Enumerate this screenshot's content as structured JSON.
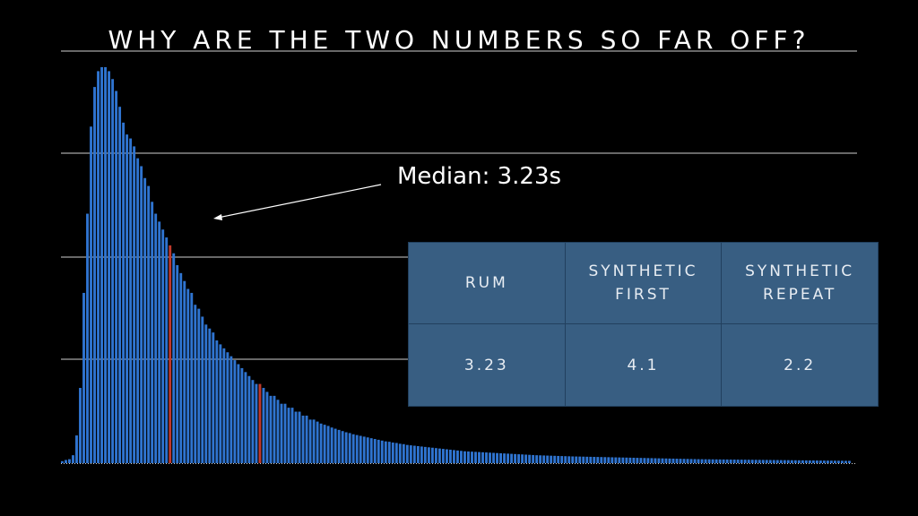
{
  "slide": {
    "title": "WHY ARE THE TWO NUMBERS SO FAR OFF?",
    "annotation": "Median: 3.23s"
  },
  "table": {
    "headers": [
      "RUM",
      "SYNTHETIC\nFIRST",
      "SYNTHETIC\nREPEAT"
    ],
    "values": [
      "3.23",
      "4.1",
      "2.2"
    ]
  },
  "chart_data": {
    "type": "bar",
    "title": "WHY ARE THE TWO NUMBERS SO FAR OFF?",
    "xlabel": "",
    "ylabel": "",
    "grid": true,
    "ylim": [
      0,
      100
    ],
    "bar_color": "#2f74d0",
    "highlight_color": "#c0392b",
    "highlighted_bars": [
      30,
      55
    ],
    "values": [
      0.5,
      0.8,
      1,
      2,
      7,
      19,
      43,
      63,
      85,
      95,
      99,
      100,
      100,
      99,
      97,
      94,
      90,
      86,
      83,
      82,
      80,
      77,
      75,
      72,
      70,
      66,
      63,
      61,
      59,
      57,
      55,
      53,
      50,
      48,
      46,
      44,
      43,
      40,
      39,
      37,
      35,
      34,
      33,
      31,
      30,
      29,
      28,
      27,
      26,
      25,
      24,
      23,
      22,
      21,
      20,
      20,
      19,
      18,
      17,
      17,
      16,
      15,
      15,
      14,
      14,
      13,
      13,
      12,
      12,
      11,
      11,
      10.5,
      10,
      9.7,
      9.4,
      9,
      8.7,
      8.4,
      8.1,
      7.8,
      7.6,
      7.3,
      7.1,
      6.9,
      6.7,
      6.5,
      6.3,
      6.1,
      5.9,
      5.7,
      5.5,
      5.4,
      5.2,
      5.1,
      4.9,
      4.8,
      4.6,
      4.5,
      4.4,
      4.3,
      4.2,
      4.1,
      4,
      3.9,
      3.8,
      3.7,
      3.6,
      3.5,
      3.4,
      3.3,
      3.2,
      3.1,
      3,
      2.95,
      2.9,
      2.85,
      2.8,
      2.75,
      2.7,
      2.65,
      2.6,
      2.55,
      2.5,
      2.45,
      2.4,
      2.35,
      2.3,
      2.25,
      2.2,
      2.15,
      2.1,
      2.05,
      2,
      1.97,
      1.94,
      1.91,
      1.88,
      1.85,
      1.82,
      1.79,
      1.76,
      1.73,
      1.7,
      1.68,
      1.66,
      1.64,
      1.62,
      1.6,
      1.58,
      1.56,
      1.54,
      1.52,
      1.5,
      1.48,
      1.46,
      1.44,
      1.42,
      1.4,
      1.38,
      1.36,
      1.34,
      1.32,
      1.3,
      1.28,
      1.26,
      1.24,
      1.22,
      1.2,
      1.18,
      1.16,
      1.14,
      1.12,
      1.1,
      1.08,
      1.06,
      1.04,
      1.02,
      1,
      0.99,
      0.98,
      0.97,
      0.96,
      0.95,
      0.94,
      0.93,
      0.92,
      0.91,
      0.9,
      0.89,
      0.88,
      0.87,
      0.86,
      0.85,
      0.84,
      0.83,
      0.82,
      0.81,
      0.8,
      0.79,
      0.78,
      0.77,
      0.76,
      0.75,
      0.74,
      0.73,
      0.72,
      0.71,
      0.7,
      0.69,
      0.68,
      0.67,
      0.66,
      0.65,
      0.64,
      0.63,
      0.62,
      0.61,
      0.6,
      0.59,
      0.58
    ]
  }
}
